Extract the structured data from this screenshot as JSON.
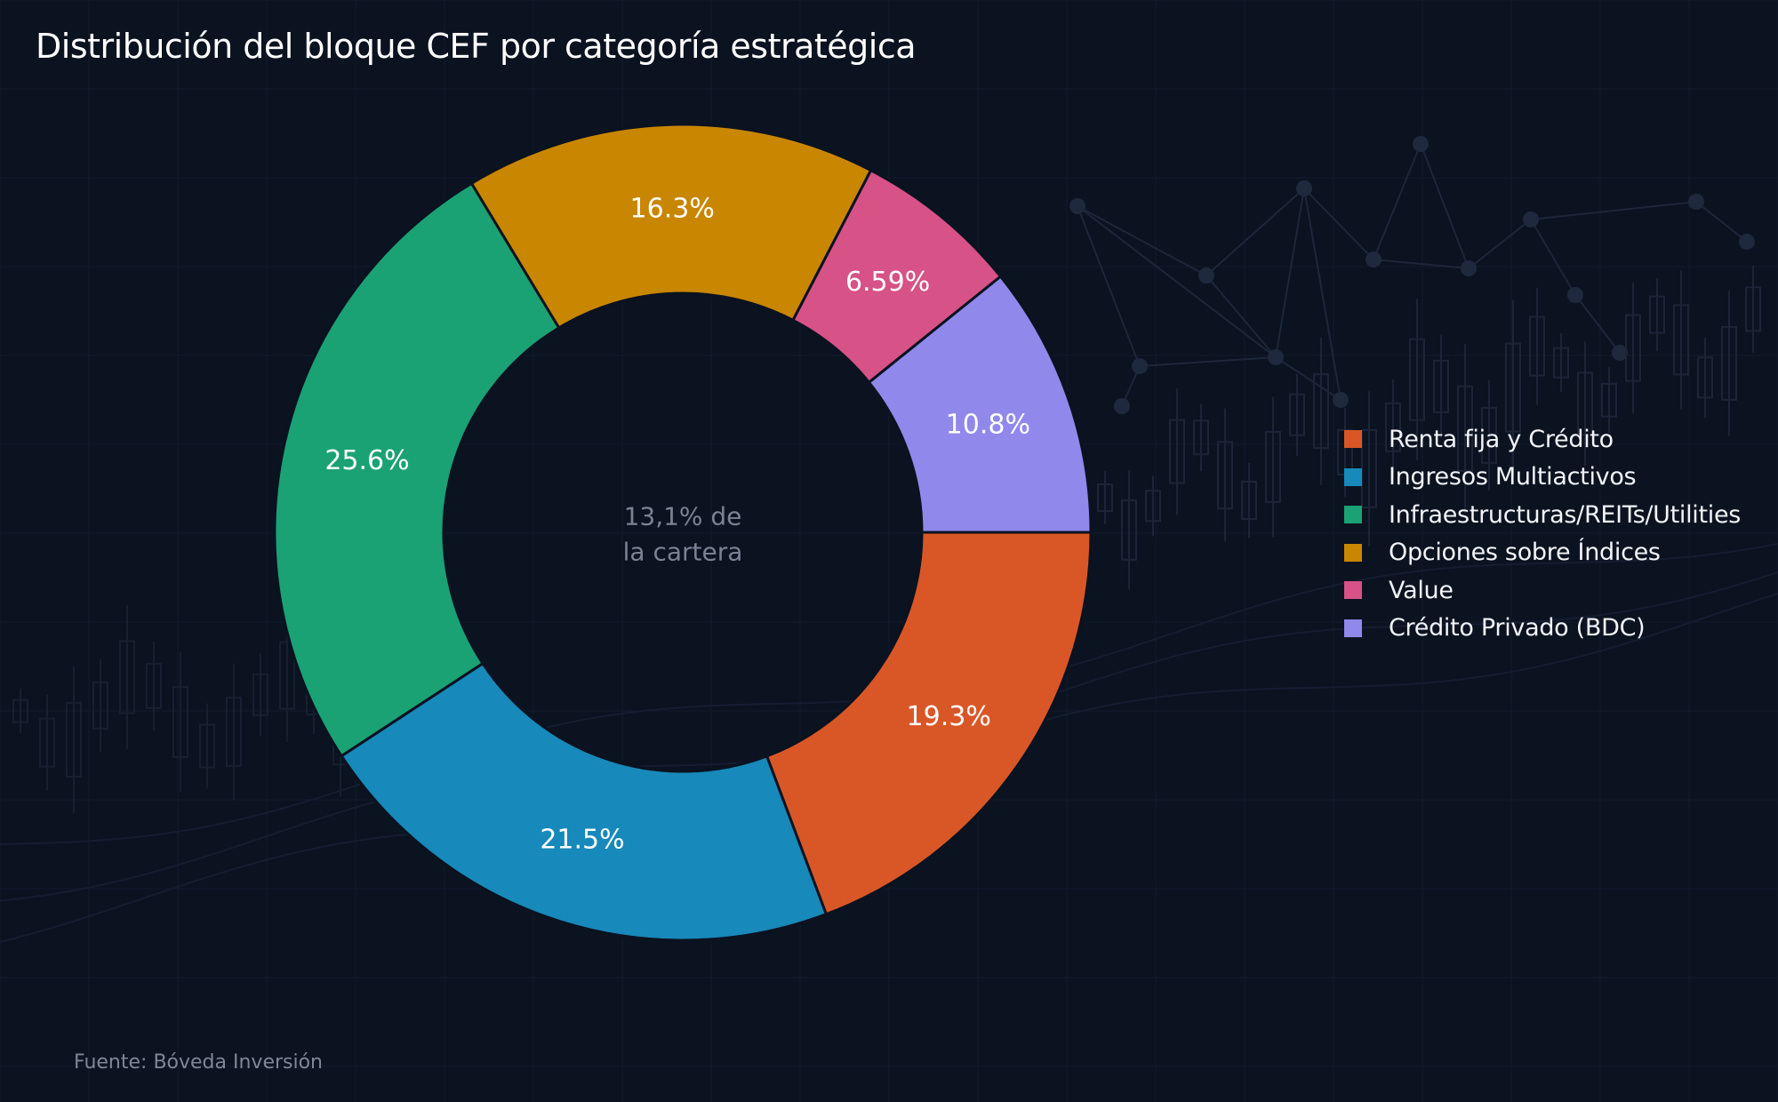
{
  "title": "Distribución del bloque CEF por categoría estratégica",
  "source": "Fuente: Bóveda Inversión",
  "chart_data": {
    "type": "pie",
    "donut": true,
    "title": "Distribución del bloque CEF por categoría estratégica",
    "center_label": [
      "13,1% de",
      "la cartera"
    ],
    "slices": [
      {
        "label": "Renta fija y Crédito",
        "value": 19.3,
        "display": "19.3%",
        "color": "#d95726"
      },
      {
        "label": "Ingresos Multiactivos",
        "value": 21.5,
        "display": "21.5%",
        "color": "#1789ba"
      },
      {
        "label": "Infraestructuras/REITs/Utilities",
        "value": 25.6,
        "display": "25.6%",
        "color": "#1aa274"
      },
      {
        "label": "Opciones sobre Índices",
        "value": 16.3,
        "display": "16.3%",
        "color": "#c98600"
      },
      {
        "label": "Value",
        "value": 6.59,
        "display": "6.59%",
        "color": "#d65287"
      },
      {
        "label": "Crédito Privado (BDC)",
        "value": 10.8,
        "display": "10.8%",
        "color": "#9088ea"
      }
    ],
    "start_angle": "3 o'clock, clockwise",
    "legend_position": "right"
  }
}
